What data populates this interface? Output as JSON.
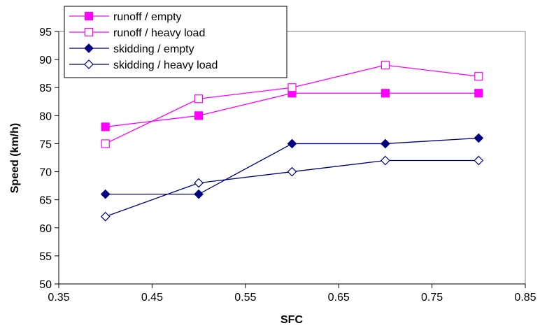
{
  "chart_data": {
    "type": "line",
    "title": "",
    "xlabel": "SFC",
    "ylabel": "Speed (km/h)",
    "xlim": [
      0.35,
      0.85
    ],
    "ylim": [
      50,
      95
    ],
    "x_ticks": [
      0.35,
      0.45,
      0.55,
      0.65,
      0.75,
      0.85
    ],
    "x_tick_labels": [
      "0.35",
      "0.45",
      "0.55",
      "0.65",
      "0.75",
      "0.85"
    ],
    "y_ticks": [
      50,
      55,
      60,
      65,
      70,
      75,
      80,
      85,
      90,
      95
    ],
    "y_tick_labels": [
      "50",
      "55",
      "60",
      "65",
      "70",
      "75",
      "80",
      "85",
      "90",
      "95"
    ],
    "grid": false,
    "legend_position": "top-left",
    "x": [
      0.4,
      0.5,
      0.6,
      0.7,
      0.8
    ],
    "series": [
      {
        "name": "runoff  / empty",
        "values": [
          78,
          80,
          84,
          84,
          84
        ],
        "color": "#ff00ff",
        "marker": "square-filled"
      },
      {
        "name": "runoff  / heavy load",
        "values": [
          75,
          83,
          85,
          89,
          87
        ],
        "color": "#ff00ff",
        "marker": "square-open"
      },
      {
        "name": "skidding / empty",
        "values": [
          66,
          66,
          75,
          75,
          76
        ],
        "color": "#000080",
        "marker": "diamond-filled"
      },
      {
        "name": "skidding / heavy load",
        "values": [
          62,
          68,
          70,
          72,
          72
        ],
        "color": "#000080",
        "marker": "diamond-open"
      }
    ]
  }
}
